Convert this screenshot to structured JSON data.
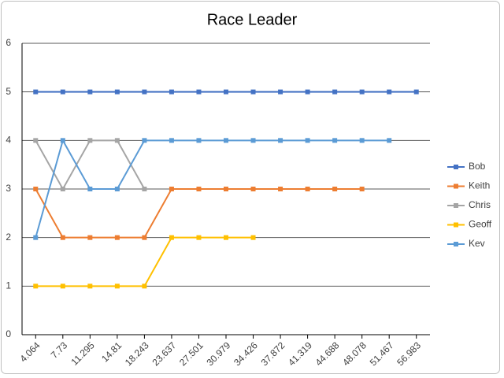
{
  "chart_data": {
    "type": "line",
    "title": "Race Leader",
    "categories": [
      "4.064",
      "7.73",
      "11.295",
      "14.81",
      "18.243",
      "23.637",
      "27.501",
      "30.979",
      "34.426",
      "37.872",
      "41.319",
      "44.688",
      "48.078",
      "51.467",
      "56.983"
    ],
    "series": [
      {
        "name": "Bob",
        "color": "#4472c4",
        "values": [
          5,
          5,
          5,
          5,
          5,
          5,
          5,
          5,
          5,
          5,
          5,
          5,
          5,
          5,
          5
        ]
      },
      {
        "name": "Keith",
        "color": "#ed7d31",
        "values": [
          3,
          2,
          2,
          2,
          2,
          3,
          3,
          3,
          3,
          3,
          3,
          3,
          3,
          null,
          null
        ]
      },
      {
        "name": "Chris",
        "color": "#a5a5a5",
        "values": [
          4,
          3,
          4,
          4,
          3,
          null,
          null,
          null,
          null,
          null,
          null,
          null,
          null,
          null,
          null
        ]
      },
      {
        "name": "Geoff",
        "color": "#ffc000",
        "values": [
          1,
          1,
          1,
          1,
          1,
          2,
          2,
          2,
          2,
          null,
          null,
          null,
          null,
          null,
          null
        ]
      },
      {
        "name": "Kev",
        "color": "#5b9bd5",
        "values": [
          2,
          4,
          3,
          3,
          4,
          4,
          4,
          4,
          4,
          4,
          4,
          4,
          4,
          4,
          null
        ]
      }
    ],
    "ylim": [
      0,
      6
    ],
    "yticks": [
      0,
      1,
      2,
      3,
      4,
      5,
      6
    ],
    "grid": true,
    "legend": "right"
  }
}
